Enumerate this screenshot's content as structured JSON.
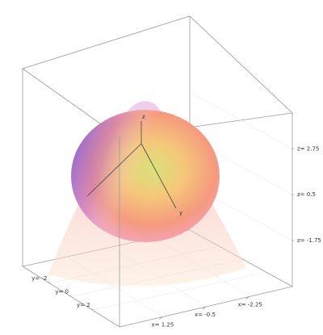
{
  "chart_data": {
    "type": "surface3d",
    "x_label": "x",
    "y_label": "y",
    "z_label": "z",
    "xlim": [
      3,
      -4
    ],
    "xticks": [
      {
        "value": 1.25,
        "label": "x= 1.25"
      },
      {
        "value": -0.5,
        "label": "x= -0.5"
      },
      {
        "value": -2.25,
        "label": "x= -2.25"
      }
    ],
    "ylim": [
      -4.5,
      4.5
    ],
    "yticks": [
      {
        "value": -2,
        "label": "y= -2"
      },
      {
        "value": 0,
        "label": "y= 0"
      },
      {
        "value": 2,
        "label": "y= 2"
      }
    ],
    "zlim": [
      -4,
      4.5
    ],
    "zticks": [
      {
        "value": 2.75,
        "label": "z= 2.75"
      },
      {
        "value": 0.5,
        "label": "z= 0.5"
      },
      {
        "value": -1.75,
        "label": "z= -1.75"
      }
    ],
    "grid": true
  }
}
